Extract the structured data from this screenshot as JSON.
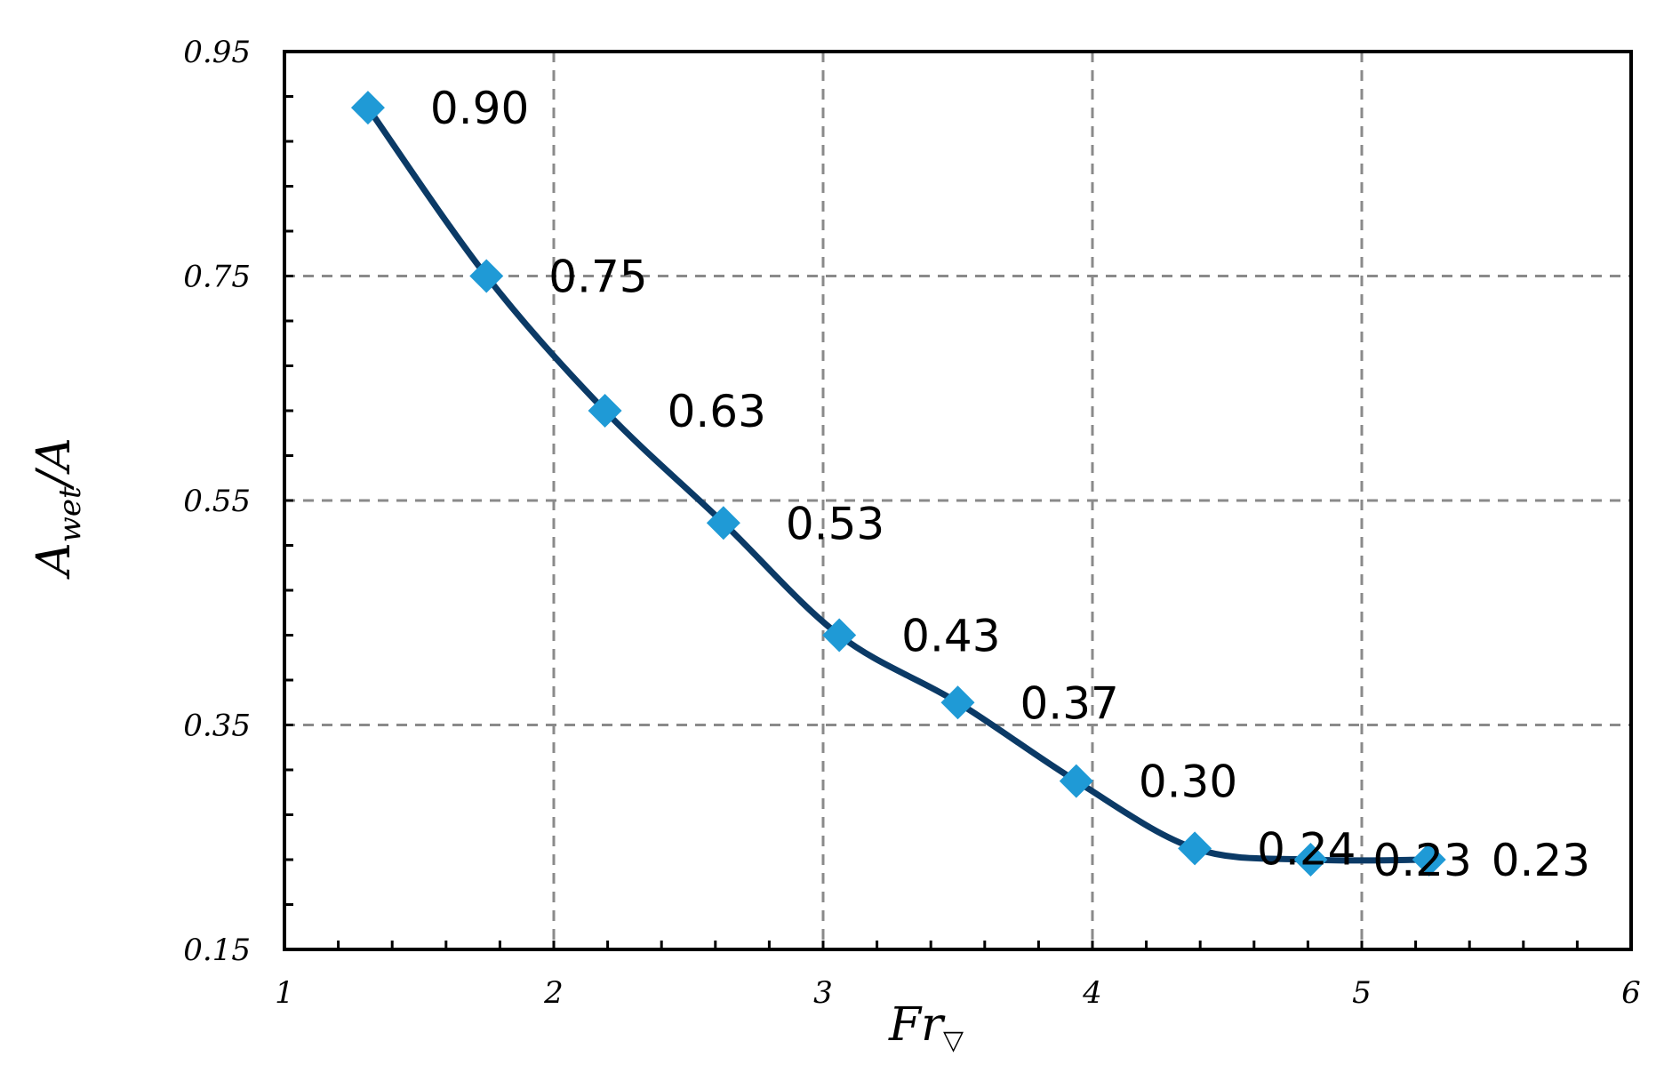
{
  "chart_data": {
    "type": "line",
    "title": "",
    "xlabel": "Fr",
    "xlabel_sub": "▽",
    "ylabel": "A",
    "ylabel_sub": "wet",
    "ylabel_suffix": "/A",
    "xlim": [
      1,
      6
    ],
    "ylim": [
      0.15,
      0.95
    ],
    "x_ticks": [
      1,
      2,
      3,
      4,
      5,
      6
    ],
    "x_tick_labels": [
      "1",
      "2",
      "3",
      "4",
      "5",
      "6"
    ],
    "y_ticks": [
      0.15,
      0.35,
      0.55,
      0.75,
      0.95
    ],
    "y_tick_labels": [
      "0.15",
      "0.35",
      "0.55",
      "0.75",
      "0.95"
    ],
    "grid": true,
    "legend": "none",
    "series": [
      {
        "x": [
          1.31,
          1.75,
          2.19,
          2.63,
          3.06,
          3.5,
          3.94,
          4.38,
          4.81,
          5.25
        ],
        "y": [
          0.9,
          0.75,
          0.63,
          0.53,
          0.43,
          0.37,
          0.3,
          0.24,
          0.23,
          0.23
        ],
        "labels": [
          "0.90",
          "0.75",
          "0.63",
          "0.53",
          "0.43",
          "0.37",
          "0.30",
          "0.24",
          "0.23",
          "0.23"
        ],
        "line_color": "#0b3a66",
        "marker_color": "#1f9ad6",
        "marker": "diamond"
      }
    ]
  }
}
